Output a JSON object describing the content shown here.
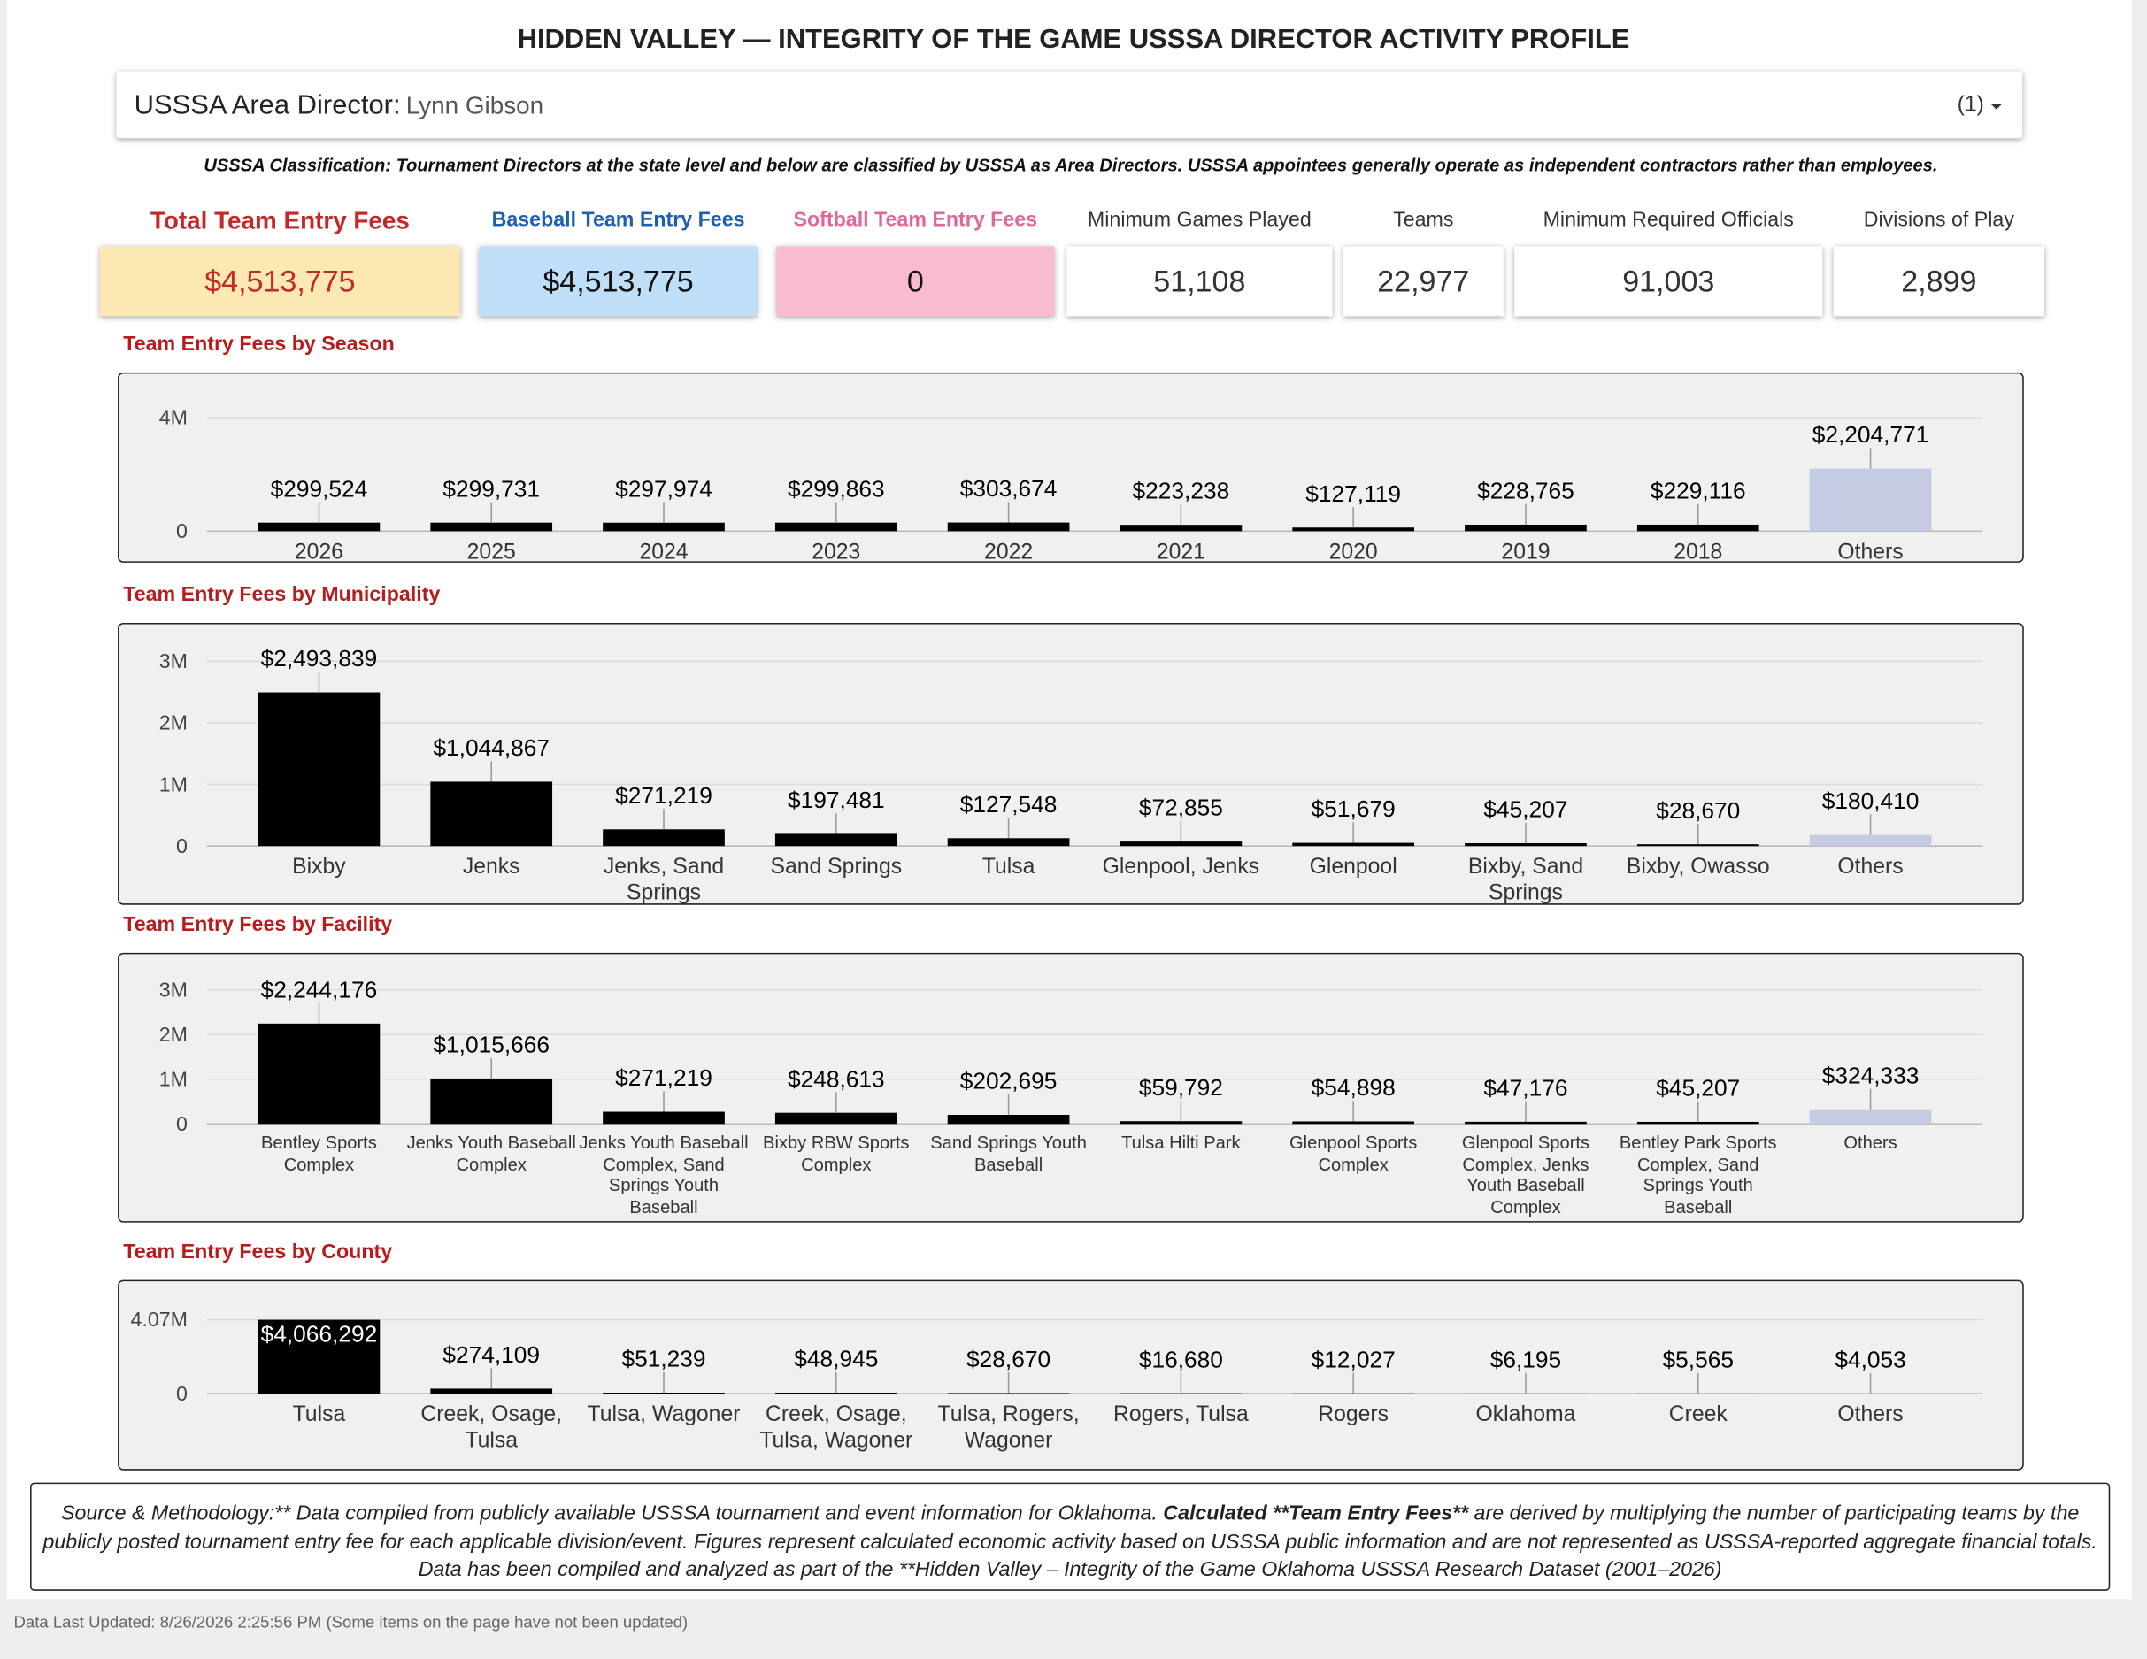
{
  "title": "HIDDEN VALLEY — INTEGRITY OF THE GAME USSSA DIRECTOR ACTIVITY PROFILE",
  "filter": {
    "label": "USSSA Area Director:",
    "value": "Lynn Gibson",
    "count": "(1)"
  },
  "classification": "USSSA Classification: Tournament Directors at the state level and below are classified by USSSA as Area Directors. USSSA appointees generally operate as independent contractors rather than employees.",
  "kpis": [
    {
      "label": "Total Team Entry Fees",
      "value": "$4,513,775"
    },
    {
      "label": "Baseball Team Entry Fees",
      "value": "$4,513,775"
    },
    {
      "label": "Softball Team Entry Fees",
      "value": "0"
    },
    {
      "label": "Minimum Games Played",
      "value": "51,108"
    },
    {
      "label": "Teams",
      "value": "22,977"
    },
    {
      "label": "Minimum Required Officials",
      "value": "91,003"
    },
    {
      "label": "Divisions of Play",
      "value": "2,899"
    }
  ],
  "chart_data": [
    {
      "type": "bar",
      "title": "Team Entry Fees by Season",
      "categories": [
        "2026",
        "2025",
        "2024",
        "2023",
        "2022",
        "2021",
        "2020",
        "2019",
        "2018",
        "Others"
      ],
      "values": [
        299524,
        299731,
        297974,
        299863,
        303674,
        223238,
        127119,
        228765,
        229116,
        2204771
      ],
      "value_labels": [
        "$299,524",
        "$299,731",
        "$297,974",
        "$299,863",
        "$303,674",
        "$223,238",
        "$127,119",
        "$228,765",
        "$229,116",
        "$2,204,771"
      ],
      "colors": [
        "#000000",
        "#000000",
        "#000000",
        "#000000",
        "#000000",
        "#000000",
        "#000000",
        "#000000",
        "#000000",
        "#c5cbe3"
      ],
      "ylim": [
        0,
        4000000
      ],
      "yticks": [
        0,
        {
          "value": 4000000,
          "label": "4M"
        }
      ],
      "grid": true
    },
    {
      "type": "bar",
      "title": "Team Entry Fees by Municipality",
      "categories": [
        "Bixby",
        "Jenks",
        "Jenks, Sand Springs",
        "Sand Springs",
        "Tulsa",
        "Glenpool, Jenks",
        "Glenpool",
        "Bixby, Sand Springs",
        "Bixby, Owasso",
        "Others"
      ],
      "values": [
        2493839,
        1044867,
        271219,
        197481,
        127548,
        72855,
        51679,
        45207,
        28670,
        180410
      ],
      "value_labels": [
        "$2,493,839",
        "$1,044,867",
        "$271,219",
        "$197,481",
        "$127,548",
        "$72,855",
        "$51,679",
        "$45,207",
        "$28,670",
        "$180,410"
      ],
      "colors": [
        "#000000",
        "#000000",
        "#000000",
        "#000000",
        "#000000",
        "#000000",
        "#000000",
        "#000000",
        "#000000",
        "#c5cbe3"
      ],
      "ylim": [
        0,
        3000000
      ],
      "yticks": [
        0,
        {
          "value": 1000000,
          "label": "1M"
        },
        {
          "value": 2000000,
          "label": "2M"
        },
        {
          "value": 3000000,
          "label": "3M"
        }
      ],
      "grid": true
    },
    {
      "type": "bar",
      "title": "Team Entry Fees by Facility",
      "categories": [
        "Bentley Sports Complex",
        "Jenks Youth Baseball Complex",
        "Jenks Youth Baseball Complex, Sand Springs Youth Baseball",
        "Bixby RBW Sports Complex",
        "Sand Springs Youth Baseball",
        "Tulsa Hilti Park",
        "Glenpool Sports Complex",
        "Glenpool Sports Complex, Jenks Youth Baseball Complex",
        "Bentley Park Sports Complex, Sand Springs Youth Baseball",
        "Others"
      ],
      "values": [
        2244176,
        1015666,
        271219,
        248613,
        202695,
        59792,
        54898,
        47176,
        45207,
        324333
      ],
      "value_labels": [
        "$2,244,176",
        "$1,015,666",
        "$271,219",
        "$248,613",
        "$202,695",
        "$59,792",
        "$54,898",
        "$47,176",
        "$45,207",
        "$324,333"
      ],
      "colors": [
        "#000000",
        "#000000",
        "#000000",
        "#000000",
        "#000000",
        "#000000",
        "#000000",
        "#000000",
        "#000000",
        "#c5cbe3"
      ],
      "ylim": [
        0,
        3000000
      ],
      "yticks": [
        0,
        {
          "value": 1000000,
          "label": "1M"
        },
        {
          "value": 2000000,
          "label": "2M"
        },
        {
          "value": 3000000,
          "label": "3M"
        }
      ],
      "grid": true
    },
    {
      "type": "bar",
      "title": "Team Entry Fees by County",
      "categories": [
        "Tulsa",
        "Creek, Osage, Tulsa",
        "Tulsa, Wagoner",
        "Creek, Osage, Tulsa, Wagoner",
        "Tulsa, Rogers, Wagoner",
        "Rogers, Tulsa",
        "Rogers",
        "Oklahoma",
        "Creek",
        "Others"
      ],
      "values": [
        4066292,
        274109,
        51239,
        48945,
        28670,
        16680,
        12027,
        6195,
        5565,
        4053
      ],
      "value_labels": [
        "$4,066,292",
        "$274,109",
        "$51,239",
        "$48,945",
        "$28,670",
        "$16,680",
        "$12,027",
        "$6,195",
        "$5,565",
        "$4,053"
      ],
      "colors": [
        "#000000",
        "#000000",
        "#000000",
        "#000000",
        "#000000",
        "#000000",
        "#000000",
        "#000000",
        "#000000",
        "#c5cbe3"
      ],
      "ylim": [
        0,
        4070000
      ],
      "yticks": [
        0,
        {
          "value": 4070000,
          "label": "4.07M"
        }
      ],
      "grid": true
    }
  ],
  "methodology": [
    {
      "text": "Source & Methodology:** Data compiled from publicly available USSSA tournament and event information for Oklahoma. ",
      "bold": false
    },
    {
      "text": "Calculated **Team Entry Fees**",
      "bold": true
    },
    {
      "text": " are derived by multiplying the number of participating teams by the publicly posted tournament entry fee for each applicable division/event. Figures represent calculated economic activity based on USSSA public information and are not represented as USSSA-reported aggregate financial totals. Data has been compiled and analyzed as part of the **Hidden Valley – Integrity of the Game Oklahoma USSSA Research Dataset (2001–2026)",
      "bold": false
    }
  ],
  "footer": "Data Last Updated: 8/26/2026 2:25:56 PM (Some items on the page have not been updated)"
}
